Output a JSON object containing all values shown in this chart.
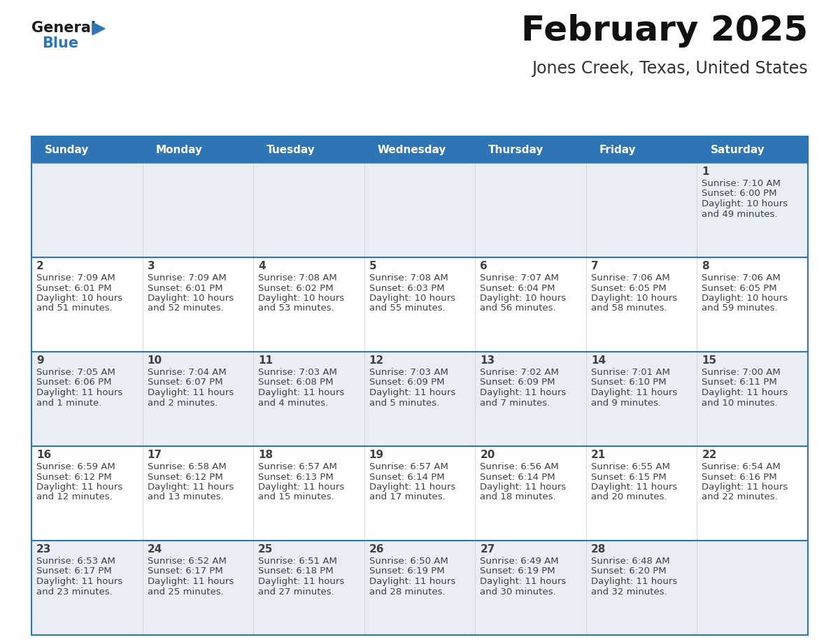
{
  "title": "February 2025",
  "subtitle": "Jones Creek, Texas, United States",
  "days_of_week": [
    "Sunday",
    "Monday",
    "Tuesday",
    "Wednesday",
    "Thursday",
    "Friday",
    "Saturday"
  ],
  "header_bg": "#2e75b6",
  "header_text_color": "#ffffff",
  "row_bg_odd": "#e8eef4",
  "row_bg_even": "#ffffff",
  "grid_line_color": "#2e75b6",
  "text_color": "#404040",
  "day_number_color": "#404040",
  "logo_general_color": "#1a1a1a",
  "logo_blue_color": "#2e75b6",
  "calendar": [
    [
      null,
      null,
      null,
      null,
      null,
      null,
      {
        "day": 1,
        "sunrise": "7:10 AM",
        "sunset": "6:00 PM",
        "daylight": "10 hours",
        "daylight2": "and 49 minutes."
      }
    ],
    [
      {
        "day": 2,
        "sunrise": "7:09 AM",
        "sunset": "6:01 PM",
        "daylight": "10 hours",
        "daylight2": "and 51 minutes."
      },
      {
        "day": 3,
        "sunrise": "7:09 AM",
        "sunset": "6:01 PM",
        "daylight": "10 hours",
        "daylight2": "and 52 minutes."
      },
      {
        "day": 4,
        "sunrise": "7:08 AM",
        "sunset": "6:02 PM",
        "daylight": "10 hours",
        "daylight2": "and 53 minutes."
      },
      {
        "day": 5,
        "sunrise": "7:08 AM",
        "sunset": "6:03 PM",
        "daylight": "10 hours",
        "daylight2": "and 55 minutes."
      },
      {
        "day": 6,
        "sunrise": "7:07 AM",
        "sunset": "6:04 PM",
        "daylight": "10 hours",
        "daylight2": "and 56 minutes."
      },
      {
        "day": 7,
        "sunrise": "7:06 AM",
        "sunset": "6:05 PM",
        "daylight": "10 hours",
        "daylight2": "and 58 minutes."
      },
      {
        "day": 8,
        "sunrise": "7:06 AM",
        "sunset": "6:05 PM",
        "daylight": "10 hours",
        "daylight2": "and 59 minutes."
      }
    ],
    [
      {
        "day": 9,
        "sunrise": "7:05 AM",
        "sunset": "6:06 PM",
        "daylight": "11 hours",
        "daylight2": "and 1 minute."
      },
      {
        "day": 10,
        "sunrise": "7:04 AM",
        "sunset": "6:07 PM",
        "daylight": "11 hours",
        "daylight2": "and 2 minutes."
      },
      {
        "day": 11,
        "sunrise": "7:03 AM",
        "sunset": "6:08 PM",
        "daylight": "11 hours",
        "daylight2": "and 4 minutes."
      },
      {
        "day": 12,
        "sunrise": "7:03 AM",
        "sunset": "6:09 PM",
        "daylight": "11 hours",
        "daylight2": "and 5 minutes."
      },
      {
        "day": 13,
        "sunrise": "7:02 AM",
        "sunset": "6:09 PM",
        "daylight": "11 hours",
        "daylight2": "and 7 minutes."
      },
      {
        "day": 14,
        "sunrise": "7:01 AM",
        "sunset": "6:10 PM",
        "daylight": "11 hours",
        "daylight2": "and 9 minutes."
      },
      {
        "day": 15,
        "sunrise": "7:00 AM",
        "sunset": "6:11 PM",
        "daylight": "11 hours",
        "daylight2": "and 10 minutes."
      }
    ],
    [
      {
        "day": 16,
        "sunrise": "6:59 AM",
        "sunset": "6:12 PM",
        "daylight": "11 hours",
        "daylight2": "and 12 minutes."
      },
      {
        "day": 17,
        "sunrise": "6:58 AM",
        "sunset": "6:12 PM",
        "daylight": "11 hours",
        "daylight2": "and 13 minutes."
      },
      {
        "day": 18,
        "sunrise": "6:57 AM",
        "sunset": "6:13 PM",
        "daylight": "11 hours",
        "daylight2": "and 15 minutes."
      },
      {
        "day": 19,
        "sunrise": "6:57 AM",
        "sunset": "6:14 PM",
        "daylight": "11 hours",
        "daylight2": "and 17 minutes."
      },
      {
        "day": 20,
        "sunrise": "6:56 AM",
        "sunset": "6:14 PM",
        "daylight": "11 hours",
        "daylight2": "and 18 minutes."
      },
      {
        "day": 21,
        "sunrise": "6:55 AM",
        "sunset": "6:15 PM",
        "daylight": "11 hours",
        "daylight2": "and 20 minutes."
      },
      {
        "day": 22,
        "sunrise": "6:54 AM",
        "sunset": "6:16 PM",
        "daylight": "11 hours",
        "daylight2": "and 22 minutes."
      }
    ],
    [
      {
        "day": 23,
        "sunrise": "6:53 AM",
        "sunset": "6:17 PM",
        "daylight": "11 hours",
        "daylight2": "and 23 minutes."
      },
      {
        "day": 24,
        "sunrise": "6:52 AM",
        "sunset": "6:17 PM",
        "daylight": "11 hours",
        "daylight2": "and 25 minutes."
      },
      {
        "day": 25,
        "sunrise": "6:51 AM",
        "sunset": "6:18 PM",
        "daylight": "11 hours",
        "daylight2": "and 27 minutes."
      },
      {
        "day": 26,
        "sunrise": "6:50 AM",
        "sunset": "6:19 PM",
        "daylight": "11 hours",
        "daylight2": "and 28 minutes."
      },
      {
        "day": 27,
        "sunrise": "6:49 AM",
        "sunset": "6:19 PM",
        "daylight": "11 hours",
        "daylight2": "and 30 minutes."
      },
      {
        "day": 28,
        "sunrise": "6:48 AM",
        "sunset": "6:20 PM",
        "daylight": "11 hours",
        "daylight2": "and 32 minutes."
      },
      null
    ]
  ]
}
